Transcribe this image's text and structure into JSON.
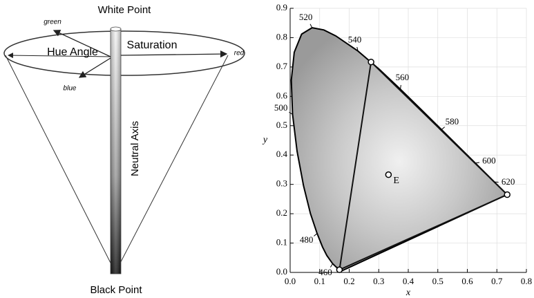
{
  "diagram": {
    "top": "White Point",
    "bottom": "Black Point",
    "hue": "Hue Angle",
    "saturation": "Saturation",
    "axis": "Neutral Axis",
    "green": "green",
    "red": "red",
    "blue": "blue"
  },
  "chart_data": {
    "type": "chromaticity",
    "xlabel": "x",
    "ylabel": "y",
    "xlim": [
      0,
      0.8
    ],
    "ylim": [
      0,
      0.9
    ],
    "grid": true,
    "xticks": [
      {
        "value": 0,
        "label": "0.0"
      },
      0.1,
      0.2,
      0.3,
      0.4,
      0.5,
      0.6,
      0.7,
      0.8
    ],
    "yticks": [
      {
        "value": 0,
        "label": "0.0"
      },
      0.1,
      0.2,
      0.3,
      0.4,
      0.5,
      0.6,
      0.7,
      0.8,
      0.9
    ],
    "locus": {
      "x": [
        0.1741,
        0.1566,
        0.144,
        0.1241,
        0.1096,
        0.0913,
        0.0687,
        0.0454,
        0.0235,
        0.0082,
        0.0039,
        0.0139,
        0.0389,
        0.0743,
        0.1142,
        0.1547,
        0.2296,
        0.3016,
        0.3731,
        0.4441,
        0.5125,
        0.5752,
        0.627,
        0.6658,
        0.6915,
        0.719,
        0.7347
      ],
      "y": [
        0.005,
        0.0177,
        0.0297,
        0.0578,
        0.0868,
        0.1327,
        0.2007,
        0.295,
        0.4127,
        0.5384,
        0.6548,
        0.7502,
        0.812,
        0.8338,
        0.8262,
        0.8059,
        0.7543,
        0.6923,
        0.6245,
        0.5547,
        0.4866,
        0.4242,
        0.3725,
        0.334,
        0.3083,
        0.2809,
        0.2653
      ]
    },
    "wavelengths": [
      460,
      480,
      500,
      520,
      540,
      560,
      580,
      600,
      620
    ],
    "wavelength_x": [
      0.144,
      0.0913,
      0.0082,
      0.0743,
      0.2296,
      0.3731,
      0.5125,
      0.627,
      0.6915
    ],
    "wavelength_y": [
      0.0297,
      0.1327,
      0.5384,
      0.8338,
      0.7543,
      0.6245,
      0.4866,
      0.3725,
      0.3083
    ],
    "gamut": {
      "x": [
        0.735,
        0.274,
        0.167
      ],
      "y": [
        0.265,
        0.717,
        0.009
      ]
    },
    "white_point": {
      "label": "E",
      "x": 0.333,
      "y": 0.333
    }
  }
}
